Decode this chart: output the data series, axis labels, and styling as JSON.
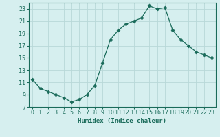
{
  "x": [
    0,
    1,
    2,
    3,
    4,
    5,
    6,
    7,
    8,
    9,
    10,
    11,
    12,
    13,
    14,
    15,
    16,
    17,
    18,
    19,
    20,
    21,
    22,
    23
  ],
  "y": [
    11.5,
    10.0,
    9.5,
    9.0,
    8.5,
    7.8,
    8.2,
    9.0,
    10.5,
    14.2,
    18.0,
    19.5,
    20.5,
    21.0,
    21.5,
    23.5,
    23.0,
    23.2,
    19.5,
    18.0,
    17.0,
    16.0,
    15.5,
    15.0
  ],
  "line_color": "#1a6b5a",
  "marker": "D",
  "marker_size": 2.5,
  "bg_color": "#d6efef",
  "grid_color": "#b8d8d8",
  "xlabel": "Humidex (Indice chaleur)",
  "xlim": [
    -0.5,
    23.5
  ],
  "ylim": [
    7,
    24
  ],
  "yticks": [
    7,
    9,
    11,
    13,
    15,
    17,
    19,
    21,
    23
  ],
  "xticks": [
    0,
    1,
    2,
    3,
    4,
    5,
    6,
    7,
    8,
    9,
    10,
    11,
    12,
    13,
    14,
    15,
    16,
    17,
    18,
    19,
    20,
    21,
    22,
    23
  ],
  "label_fontsize": 6.5,
  "tick_fontsize": 6.0
}
